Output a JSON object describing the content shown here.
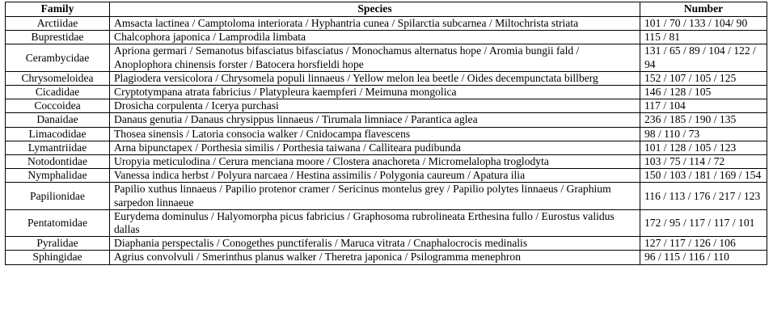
{
  "table": {
    "headers": [
      "Family",
      "Species",
      "Number"
    ],
    "rows": [
      {
        "family": "Arctiidae",
        "species": "Amsacta lactinea / Camptoloma interiorata / Hyphantria cunea / Spilarctia subcarnea / Miltochrista striata",
        "number": "101 / 70 / 133 / 104/ 90"
      },
      {
        "family": "Buprestidae",
        "species": "Chalcophora japonica / Lamprodila limbata",
        "number": "115 / 81"
      },
      {
        "family": "Cerambycidae",
        "species": "Apriona germari / Semanotus bifasciatus bifasciatus / Monochamus alternatus hope / Aromia bungii fald / Anoplophora chinensis forster / Batocera horsfieldi hope",
        "number": "131 / 65 / 89 / 104 / 122 / 94"
      },
      {
        "family": "Chrysomeloidea",
        "species": "Plagiodera versicolora / Chrysomela populi linnaeus / Yellow melon lea beetle / Oides decempunctata billberg",
        "number": "152 / 107 / 105 / 125"
      },
      {
        "family": "Cicadidae",
        "species": "Cryptotympana atrata fabricius / Platypleura kaempferi / Meimuna mongolica",
        "number": "146 / 128 / 105"
      },
      {
        "family": "Coccoidea",
        "species": "Drosicha corpulenta / Icerya purchasi",
        "number": "117 / 104"
      },
      {
        "family": "Danaidae",
        "species": "Danaus genutia / Danaus chrysippus linnaeus / Tirumala limniace / Parantica aglea",
        "number": "236 / 185 / 190 / 135"
      },
      {
        "family": "Limacodidae",
        "species": "Thosea sinensis / Latoria consocia walker / Cnidocampa flavescens",
        "number": "98 / 110 / 73"
      },
      {
        "family": "Lymantriidae",
        "species": "Arna bipunctapex / Porthesia similis / Porthesia taiwana / Calliteara pudibunda",
        "number": "101 / 128 / 105 / 123"
      },
      {
        "family": "Notodontidae",
        "species": "Uropyia meticulodina / Cerura menciana moore / Clostera anachoreta / Micromelalopha troglodyta",
        "number": "103 / 75 / 114 / 72"
      },
      {
        "family": "Nymphalidae",
        "species": "Vanessa indica herbst / Polyura narcaea / Hestina assimilis / Polygonia caureum / Apatura ilia",
        "number": "150 / 103 / 181 / 169 / 154"
      },
      {
        "family": "Papilionidae",
        "species": "Papilio xuthus linnaeus / Papilio protenor cramer / Sericinus montelus grey / Papilio polytes linnaeus / Graphium sarpedon linnaeue",
        "number": "116 / 113 / 176 / 217 / 123"
      },
      {
        "family": "Pentatomidae",
        "species": "Eurydema dominulus / Halyomorpha picus fabricius / Graphosoma rubrolineata Erthesina fullo / Eurostus validus dallas",
        "number": "172 / 95 / 117 / 117 / 101"
      },
      {
        "family": "Pyralidae",
        "species": "Diaphania perspectalis / Conogethes punctiferalis / Maruca vitrata / Cnaphalocrocis medinalis",
        "number": "127 / 117 / 126 / 106"
      },
      {
        "family": "Sphingidae",
        "species": "Agrius convolvuli / Smerinthus planus walker / Theretra japonica / Psilogramma menephron",
        "number": "96 / 115 / 116 / 110"
      }
    ]
  }
}
